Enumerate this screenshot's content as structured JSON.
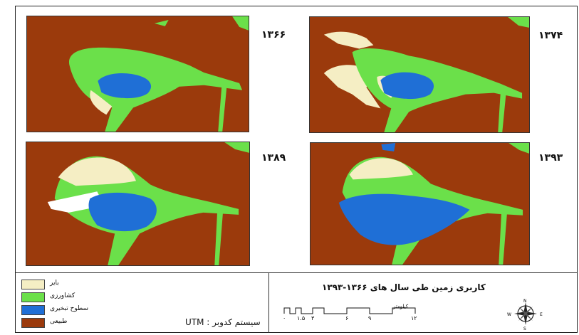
{
  "map_title": "کاربری زمین طی سال های ۱۳۶۶-۱۳۹۳",
  "panels": [
    {
      "year": "۱۳۶۶"
    },
    {
      "year": "۱۳۷۴"
    },
    {
      "year": "۱۳۸۹"
    },
    {
      "year": "۱۳۹۳"
    }
  ],
  "legend": [
    {
      "label": "بایر",
      "color": "#f5eec4"
    },
    {
      "label": "کشاورزی",
      "color": "#6be04a"
    },
    {
      "label": "سطوح تبخیری",
      "color": "#1f6fd6"
    },
    {
      "label": "طبیعی",
      "color": "#9b3a0c"
    }
  ],
  "coordinate_system": "سیستم کدوبر : UTM",
  "scale": {
    "unit": "کیلومتر",
    "ticks": [
      "۰",
      "۱.۵",
      "۳",
      "۶",
      "۹",
      "۱۲"
    ]
  },
  "compass": {
    "n": "N",
    "s": "S",
    "e": "E",
    "w": "W"
  }
}
